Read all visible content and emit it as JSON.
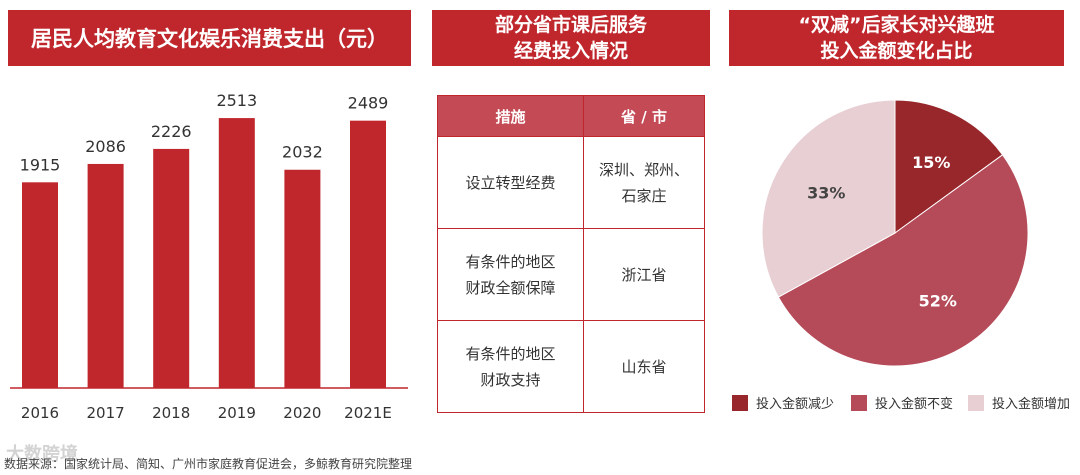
{
  "panel1": {
    "title": "居民人均教育文化娱乐消费支出（元）"
  },
  "panel2": {
    "title_line1": "部分省市课后服务",
    "title_line2": "经费投入情况",
    "headers": [
      "措施",
      "省 / 市"
    ],
    "rows": [
      {
        "measure": [
          "设立转型经费"
        ],
        "region": [
          "深圳、郑州、",
          "石家庄"
        ]
      },
      {
        "measure": [
          "有条件的地区",
          "财政全额保障"
        ],
        "region": [
          "浙江省"
        ]
      },
      {
        "measure": [
          "有条件的地区",
          "财政支持"
        ],
        "region": [
          "山东省"
        ]
      }
    ]
  },
  "panel3": {
    "title_line1": "“双减”后家长对兴趣班",
    "title_line2": "投入金额变化占比"
  },
  "chart_data": [
    {
      "type": "bar",
      "title": "居民人均教育文化娱乐消费支出（元）",
      "categories": [
        "2016",
        "2017",
        "2018",
        "2019",
        "2020",
        "2021E"
      ],
      "values": [
        1915,
        2086,
        2226,
        2513,
        2032,
        2489
      ],
      "ylim": [
        0,
        2700
      ],
      "color": "#c0272d",
      "grid": false
    },
    {
      "type": "pie",
      "title": "“双减”后家长对兴趣班投入金额变化占比",
      "labels": [
        "投入金额减少",
        "投入金额不变",
        "投入金额增加"
      ],
      "values": [
        15,
        52,
        33
      ],
      "value_labels": [
        "15%",
        "52%",
        "33%"
      ],
      "colors": [
        "#97272b",
        "#b54a58",
        "#e8cfd3"
      ],
      "legend": "bottom"
    }
  ],
  "source": "数据来源：国家统计局、简知、广州市家庭教育促进会，多鲸教育研究院整理",
  "watermark": "大数跨境"
}
